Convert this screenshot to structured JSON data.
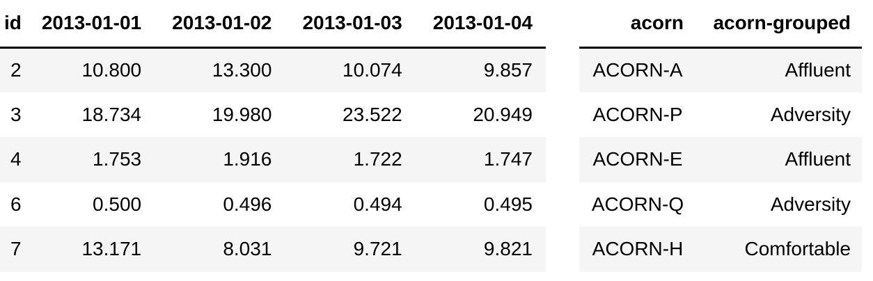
{
  "left_table": {
    "headers": [
      "id",
      "2013-01-01",
      "2013-01-02",
      "2013-01-03",
      "2013-01-04"
    ],
    "rows": [
      [
        "2",
        "10.800",
        "13.300",
        "10.074",
        "9.857"
      ],
      [
        "3",
        "18.734",
        "19.980",
        "23.522",
        "20.949"
      ],
      [
        "4",
        "1.753",
        "1.916",
        "1.722",
        "1.747"
      ],
      [
        "6",
        "0.500",
        "0.496",
        "0.494",
        "0.495"
      ],
      [
        "7",
        "13.171",
        "8.031",
        "9.721",
        "9.821"
      ]
    ]
  },
  "right_table": {
    "headers": [
      "acorn",
      "acorn-grouped"
    ],
    "rows": [
      [
        "ACORN-A",
        "Affluent"
      ],
      [
        "ACORN-P",
        "Adversity"
      ],
      [
        "ACORN-E",
        "Affluent"
      ],
      [
        "ACORN-Q",
        "Adversity"
      ],
      [
        "ACORN-H",
        "Comfortable"
      ]
    ]
  },
  "colors": {
    "stripe": "#f5f5f5",
    "rule": "#000000"
  }
}
